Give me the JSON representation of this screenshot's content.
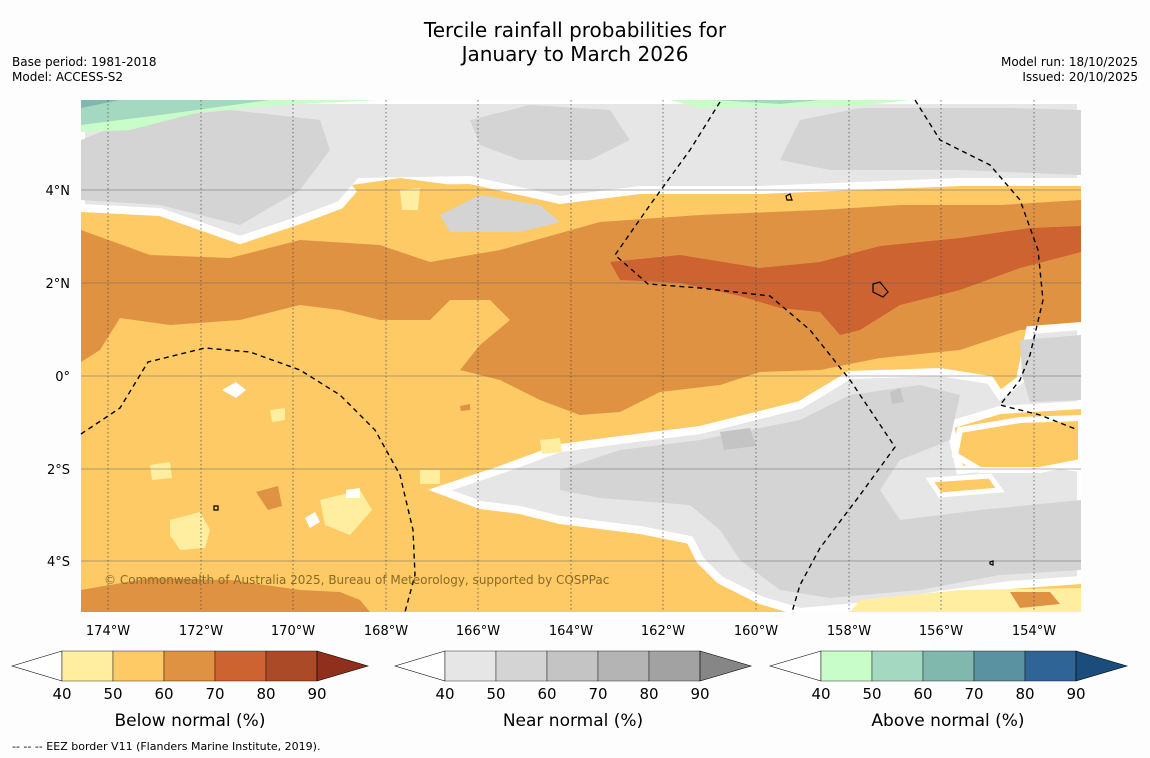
{
  "title": {
    "line1": "Tercile rainfall probabilities for",
    "line2": "January to March 2026"
  },
  "meta_left": {
    "base_period": "Base period: 1981-2018",
    "model": "Model: ACCESS-S2"
  },
  "meta_right": {
    "model_run": "Model run: 18/10/2025",
    "issued": "Issued: 20/10/2025"
  },
  "map": {
    "lon_labels": [
      "174°W",
      "172°W",
      "170°W",
      "168°W",
      "166°W",
      "164°W",
      "162°W",
      "160°W",
      "158°W",
      "156°W",
      "154°W"
    ],
    "lat_labels": [
      "4°N",
      "2°N",
      "0°",
      "2°S",
      "4°S"
    ],
    "copyright": "© Commonwealth of Australia 2025, Bureau of Meteorology, supported by COSPPac"
  },
  "colorbars": [
    {
      "label": "Below normal (%)",
      "ticks": [
        "40",
        "50",
        "60",
        "70",
        "80",
        "90"
      ],
      "colors": [
        "#ffffff",
        "#ffeea0",
        "#fdca65",
        "#e09243",
        "#cd6331",
        "#aa4a26",
        "#8f2f1c"
      ]
    },
    {
      "label": "Near normal (%)",
      "ticks": [
        "40",
        "50",
        "60",
        "70",
        "80",
        "90"
      ],
      "colors": [
        "#ffffff",
        "#e6e6e6",
        "#d4d4d4",
        "#c4c4c4",
        "#b4b4b4",
        "#a2a2a2",
        "#868686"
      ]
    },
    {
      "label": "Above normal (%)",
      "ticks": [
        "40",
        "50",
        "60",
        "70",
        "80",
        "90"
      ],
      "colors": [
        "#ffffff",
        "#c8fcc8",
        "#a5d8c0",
        "#80b8ae",
        "#5a92a2",
        "#2f6496",
        "#1a4c7c"
      ]
    }
  ],
  "colors": {
    "below_50_60": "#fdca65",
    "below_60_70": "#e09243",
    "below_70_80": "#cd6331",
    "below_40_50": "#ffeea0",
    "near_40_50": "#e6e6e6",
    "near_50_60": "#d4d4d4",
    "near_60_70": "#c4c4c4",
    "above_40_50": "#c8fcc8",
    "above_50_60": "#a5d8c0",
    "above_60_70": "#80b8ae"
  },
  "footnote": "--  --  -- EEZ border V11 (Flanders Marine Institute, 2019)."
}
